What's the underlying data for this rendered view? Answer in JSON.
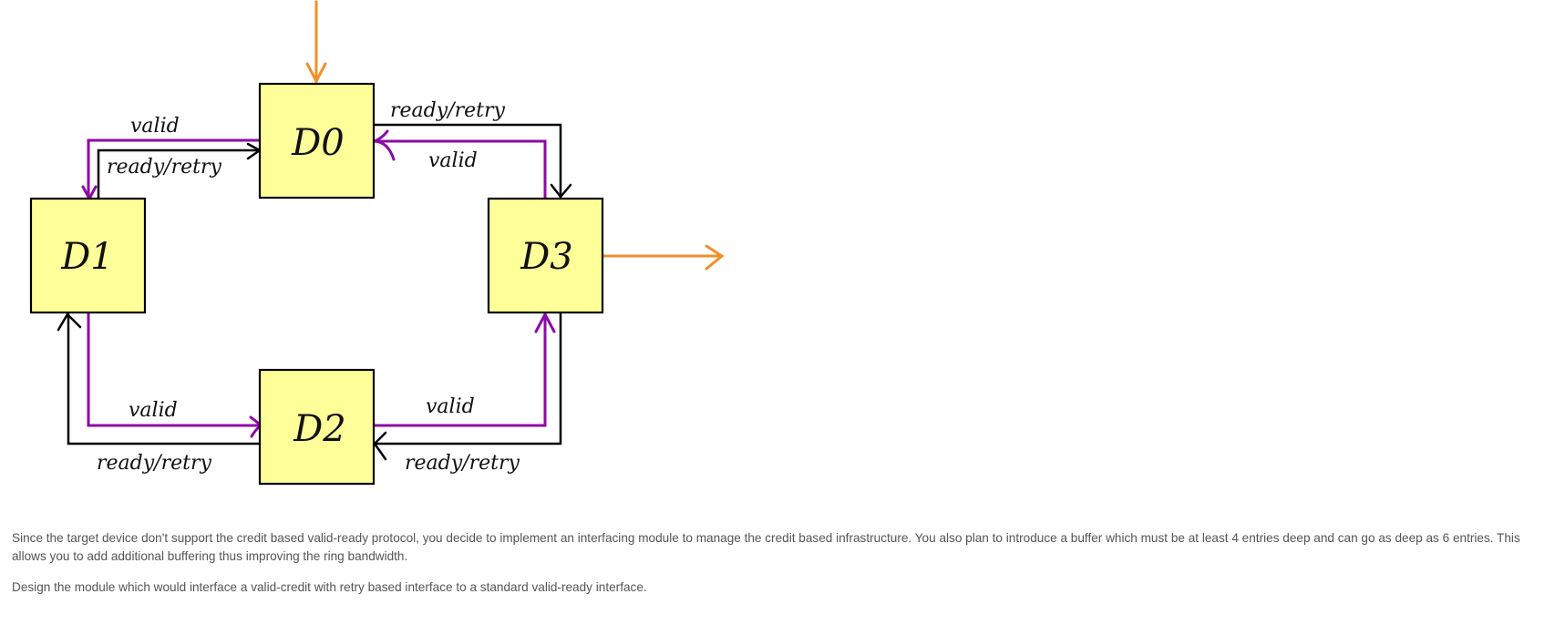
{
  "diagram": {
    "nodes": [
      {
        "id": "D0",
        "label": "D0"
      },
      {
        "id": "D1",
        "label": "D1"
      },
      {
        "id": "D2",
        "label": "D2"
      },
      {
        "id": "D3",
        "label": "D3"
      }
    ],
    "edge_labels": {
      "valid": "valid",
      "ready_retry": "ready/retry"
    },
    "colors": {
      "node_fill": "#FFFF99",
      "valid_line": "#8B0AA5",
      "ready_line": "#000000",
      "io_arrow": "#F0902A"
    }
  },
  "text": {
    "paragraph_1": "Since the target device don't support the credit based valid-ready protocol, you decide to implement an interfacing module to manage the credit based infrastructure. You also plan to introduce a buffer which must be at least 4 entries deep and can go as deep as 6 entries. This allows you to add additional buffering thus improving the ring bandwidth.",
    "paragraph_2": "Design the module which would interface a valid-credit with retry based interface to a standard valid-ready interface."
  }
}
